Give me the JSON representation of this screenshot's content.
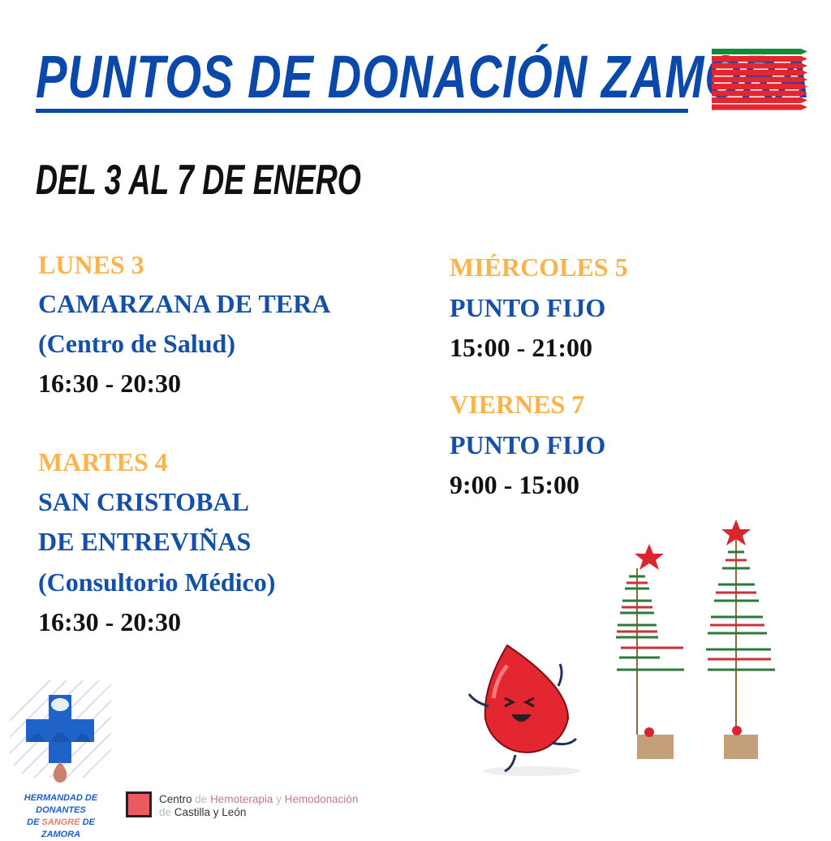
{
  "title": "PUNTOS DE DONACIÓN ZAMORA",
  "subtitle": "DEL 3 AL 7 DE ENERO",
  "left": [
    {
      "day": "LUNES 3",
      "place": [
        "CAMARZANA DE TERA",
        "(Centro de Salud)"
      ],
      "time": "16:30 - 20:30"
    },
    {
      "day": "MARTES 4",
      "place": [
        "SAN CRISTOBAL",
        "DE ENTREVIÑAS",
        "(Consultorio Médico)"
      ],
      "time": "16:30 - 20:30"
    }
  ],
  "right": [
    {
      "day": "MIÉRCOLES 5",
      "place": [
        "PUNTO FIJO"
      ],
      "time": "15:00 - 21:00"
    },
    {
      "day": "VIERNES 7",
      "place": [
        "PUNTO FIJO"
      ],
      "time": "9:00 - 15:00"
    }
  ],
  "logos": {
    "hermandad": {
      "line1": "HERMANDAD DE DONANTES",
      "line2a": "DE ",
      "line2b": "SANGRE",
      "line2c": " DE ZAMORA"
    },
    "centro": {
      "w1": "Centro",
      "w2": " de ",
      "w3": "Hemoterapia",
      "w4": " y ",
      "w5": "Hemodonación",
      "w6": "de ",
      "w7": "Castilla y León"
    }
  },
  "colors": {
    "blue": "#1550a8",
    "orange": "#fbb44c",
    "red": "#e3262f",
    "green": "#128a3a"
  }
}
